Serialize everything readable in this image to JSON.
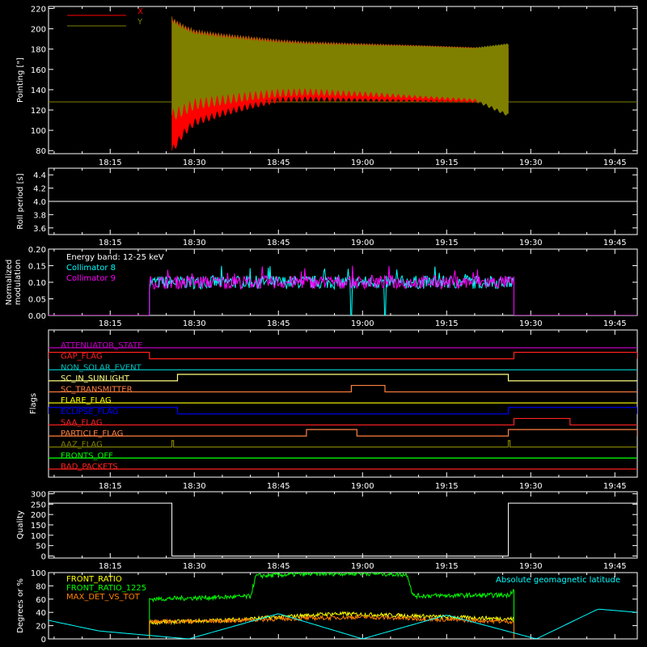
{
  "chart_data": [
    {
      "type": "line",
      "ylabel": "Pointing [\"]",
      "ylim": [
        77,
        222
      ],
      "yticks": [
        80,
        100,
        120,
        140,
        160,
        180,
        200,
        220
      ],
      "xlim": [
        "18:04",
        "19:49"
      ],
      "xticks": [
        "18:15",
        "18:30",
        "18:45",
        "19:00",
        "19:15",
        "19:30",
        "19:45"
      ],
      "legend": [
        "X",
        "Y"
      ],
      "legend_placement": "top-left",
      "series": [
        {
          "name": "X",
          "color": "#ff0000",
          "baseline": 128,
          "active_window": [
            "18:26",
            "19:26"
          ],
          "x": [
            "18:26",
            "18:28",
            "18:30",
            "18:35",
            "18:40",
            "18:45",
            "18:50",
            "19:00",
            "19:10",
            "19:20",
            "19:26"
          ],
          "low": [
            80,
            97,
            108,
            117,
            124,
            130,
            131,
            130,
            129,
            128,
            127
          ],
          "high": [
            212,
            205,
            200,
            196,
            193,
            190,
            188,
            186,
            184,
            182,
            182
          ]
        },
        {
          "name": "Y",
          "color": "#808000",
          "baseline": 128,
          "active_window": [
            "18:26",
            "19:26"
          ],
          "x": [
            "18:26",
            "18:28",
            "18:30",
            "18:35",
            "18:40",
            "18:45",
            "18:50",
            "19:00",
            "19:10",
            "19:20",
            "19:26"
          ],
          "low": [
            115,
            120,
            126,
            130,
            134,
            137,
            138,
            136,
            133,
            130,
            115
          ],
          "high": [
            212,
            205,
            200,
            196,
            193,
            190,
            188,
            186,
            184,
            182,
            186
          ]
        }
      ]
    },
    {
      "type": "line",
      "ylabel": "Roll period [s]",
      "ylim": [
        3.5,
        4.5
      ],
      "yticks": [
        3.6,
        3.8,
        4.0,
        4.2,
        4.4
      ],
      "xlim": [
        "18:04",
        "19:49"
      ],
      "xticks": [
        "18:15",
        "18:30",
        "18:45",
        "19:00",
        "19:15",
        "19:30",
        "19:45"
      ],
      "series": [
        {
          "name": "",
          "color": "#ffffff",
          "x": [
            "18:04",
            "19:49"
          ],
          "y": [
            4.0,
            4.0
          ]
        }
      ]
    },
    {
      "type": "line",
      "ylabel": "Normalized modulation",
      "ylim": [
        0,
        0.2
      ],
      "yticks": [
        0.0,
        0.05,
        0.1,
        0.15,
        0.2
      ],
      "xlim": [
        "18:04",
        "19:49"
      ],
      "xticks": [
        "18:15",
        "18:30",
        "18:45",
        "19:00",
        "19:15",
        "19:30",
        "19:45"
      ],
      "annotation": "Energy band: 12-25 keV",
      "series": [
        {
          "name": "Collimator 8",
          "color": "#00ffff",
          "active_window": [
            "18:22",
            "19:27"
          ],
          "mean": 0.1,
          "noise": 0.02,
          "dropouts": [
            [
              "18:58",
              "18:58"
            ],
            [
              "19:04",
              "19:04"
            ]
          ]
        },
        {
          "name": "Collimator 9",
          "color": "#ff00ff",
          "active_window": [
            "18:22",
            "19:27"
          ],
          "mean": 0.1,
          "noise": 0.02
        }
      ]
    },
    {
      "type": "table",
      "ylabel": "Flags",
      "xlim": [
        "18:04",
        "19:49"
      ],
      "xticks": [
        "18:15",
        "18:30",
        "18:45",
        "19:00",
        "19:15",
        "19:30",
        "19:45"
      ],
      "flags": [
        {
          "name": "ATTENUATOR_STATE",
          "color": "#c000c0",
          "on": []
        },
        {
          "name": "GAP_FLAG",
          "color": "#ff2020",
          "on": [
            [
              "18:04",
              "18:22"
            ],
            [
              "19:27",
              "19:49"
            ]
          ]
        },
        {
          "name": "NON_SOLAR_EVENT",
          "color": "#00c0c0",
          "on": []
        },
        {
          "name": "SC_IN_SUNLIGHT",
          "color": "#ffff80",
          "on": [
            [
              "18:27",
              "19:26"
            ]
          ]
        },
        {
          "name": "SC_TRANSMITTER",
          "color": "#ff8040",
          "on": [
            [
              "18:58",
              "19:04"
            ]
          ]
        },
        {
          "name": "FLARE_FLAG",
          "color": "#ffff00",
          "on": []
        },
        {
          "name": "ECLIPSE_FLAG",
          "color": "#0000ff",
          "on": [
            [
              "18:04",
              "18:27"
            ],
            [
              "19:26",
              "19:49"
            ]
          ]
        },
        {
          "name": "SAA_FLAG",
          "color": "#ff2020",
          "on": [
            [
              "19:27",
              "19:37"
            ]
          ]
        },
        {
          "name": "PARTICLE_FLAG",
          "color": "#ff8040",
          "on": [
            [
              "18:50",
              "18:59"
            ],
            [
              "19:26",
              "19:49"
            ]
          ]
        },
        {
          "name": "AAZ_FLAG",
          "color": "#808000",
          "on": [
            [
              "18:26",
              "18:26"
            ],
            [
              "19:26",
              "19:26"
            ]
          ]
        },
        {
          "name": "FRONTS_OFF",
          "color": "#00ff00",
          "on": []
        },
        {
          "name": "BAD_PACKETS",
          "color": "#ff2020",
          "on": []
        }
      ]
    },
    {
      "type": "line",
      "ylabel": "Quality",
      "ylim": [
        -10,
        310
      ],
      "yticks": [
        0,
        50,
        100,
        150,
        200,
        250,
        300
      ],
      "xlim": [
        "18:04",
        "19:49"
      ],
      "xticks": [
        "18:15",
        "18:30",
        "18:45",
        "19:00",
        "19:15",
        "19:30",
        "19:45"
      ],
      "series": [
        {
          "name": "",
          "color": "#ffffff",
          "x": [
            "18:04",
            "18:26",
            "18:26",
            "19:26",
            "19:26",
            "19:49"
          ],
          "y": [
            255,
            255,
            0,
            0,
            255,
            255
          ]
        }
      ]
    },
    {
      "type": "line",
      "ylabel": "Degrees or %",
      "ylim": [
        0,
        100
      ],
      "yticks": [
        0,
        20,
        40,
        60,
        80,
        100
      ],
      "xlim": [
        "18:04",
        "19:49"
      ],
      "series": [
        {
          "name": "FRONT_RATIO",
          "color": "#ffff00",
          "x": [
            "18:22",
            "18:35",
            "18:45",
            "18:55",
            "19:05",
            "19:15",
            "19:27"
          ],
          "y": [
            25,
            28,
            33,
            38,
            36,
            33,
            30
          ]
        },
        {
          "name": "FRONT_RATIO_1225",
          "color": "#00ff00",
          "x": [
            "18:22",
            "18:40",
            "18:41",
            "18:50",
            "19:00",
            "19:08",
            "19:09",
            "19:26",
            "19:27"
          ],
          "y": [
            60,
            64,
            95,
            98,
            99,
            97,
            65,
            66,
            75
          ]
        },
        {
          "name": "MAX_DET_VS_TOT",
          "color": "#ff8000",
          "x": [
            "18:22",
            "18:35",
            "18:45",
            "19:00",
            "19:15",
            "19:27"
          ],
          "y": [
            26,
            27,
            30,
            33,
            29,
            26
          ]
        },
        {
          "name": "Absolute geomagnetic latitude",
          "color": "#00ffff",
          "x": [
            "18:04",
            "18:13",
            "18:29",
            "18:45",
            "19:00",
            "19:15",
            "19:31",
            "19:42",
            "19:49"
          ],
          "y": [
            28,
            12,
            0,
            38,
            0,
            36,
            0,
            45,
            40
          ]
        }
      ]
    }
  ]
}
